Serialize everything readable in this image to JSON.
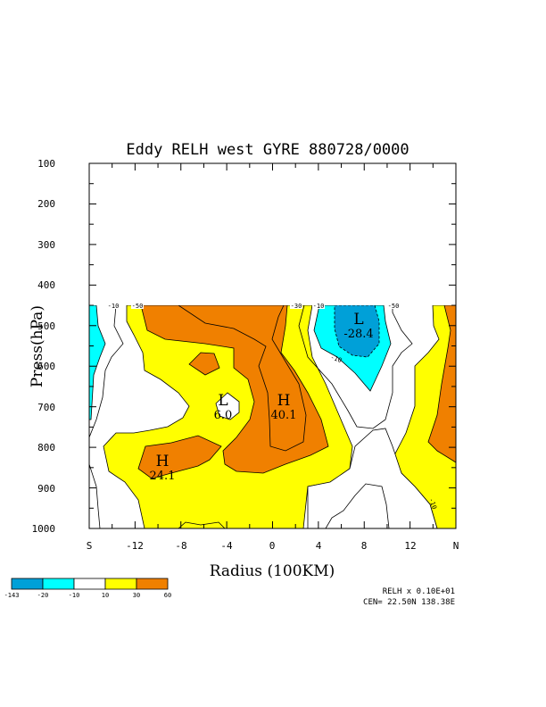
{
  "chart_data": {
    "type": "contour",
    "title": "Eddy RELH west GYRE 880728/0000",
    "xlabel": "Radius (100KM)",
    "ylabel": "Press(hPa)",
    "xlim": [
      -16,
      16
    ],
    "ylim": [
      1000,
      100
    ],
    "x_ticks": [
      "S",
      "-12",
      "-8",
      "-4",
      "0",
      "4",
      "8",
      "12",
      "N"
    ],
    "y_ticks": [
      "100",
      "200",
      "300",
      "400",
      "500",
      "600",
      "700",
      "800",
      "900",
      "1000"
    ],
    "data_top_pressure": 450,
    "contour_labels": [
      "-10",
      "-50",
      "-30",
      "-10",
      "-50",
      "-10",
      "-10"
    ],
    "extrema": [
      {
        "type": "L",
        "value": "-28.4",
        "x": 7.5,
        "p": 520
      },
      {
        "type": "H",
        "value": "40.1",
        "x": 1,
        "p": 700
      },
      {
        "type": "L",
        "value": "6.0",
        "x": -3.5,
        "p": 700
      },
      {
        "type": "H",
        "value": "24.1",
        "x": -9.5,
        "p": 860
      }
    ],
    "colorbar": {
      "labels": [
        "-143",
        "-20",
        "-10",
        "10",
        "30",
        "60"
      ],
      "colors": [
        "#00a0d8",
        "#00ffff",
        "#ffffff",
        "#ffff00",
        "#f08000"
      ]
    },
    "scale_note": "RELH x  0.10E+01",
    "center_note": "CEN= 22.50N  138.38E"
  }
}
